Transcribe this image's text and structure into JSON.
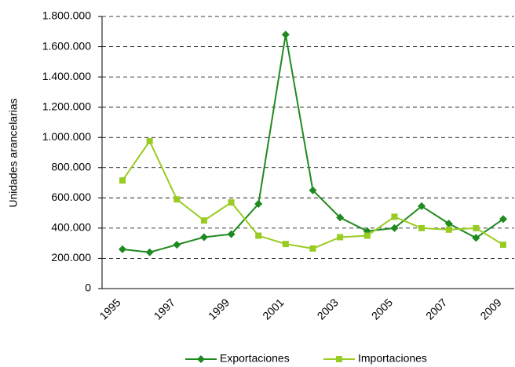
{
  "chart_data": {
    "type": "line",
    "ylabel": "Unidades arancelarias",
    "categories": [
      "1995",
      null,
      "1997",
      null,
      "1999",
      null,
      "2001",
      null,
      "2003",
      null,
      "2005",
      null,
      "2007",
      null,
      "2009"
    ],
    "series": [
      {
        "name": "Exportaciones",
        "color": "#1f8a1f",
        "marker": "diamond",
        "values": [
          260000,
          240000,
          290000,
          340000,
          360000,
          560000,
          1680000,
          650000,
          470000,
          380000,
          400000,
          545000,
          430000,
          335000,
          460000
        ]
      },
      {
        "name": "Importaciones",
        "color": "#99cc22",
        "marker": "square",
        "values": [
          715000,
          975000,
          590000,
          450000,
          570000,
          350000,
          295000,
          265000,
          340000,
          350000,
          475000,
          400000,
          390000,
          400000,
          290000
        ]
      }
    ],
    "ylim": [
      0,
      1800000
    ],
    "yticks": [
      0,
      {
        "value": 200000,
        "label": "200.000"
      },
      {
        "value": 400000,
        "label": "400.000"
      },
      {
        "value": 600000,
        "label": "600.000"
      },
      {
        "value": 800000,
        "label": "800.000"
      },
      {
        "value": 1000000,
        "label": "1.000.000"
      },
      {
        "value": 1200000,
        "label": "1.200.000"
      },
      {
        "value": 1400000,
        "label": "1.400.000"
      },
      {
        "value": 1600000,
        "label": "1.600.000"
      },
      {
        "value": 1800000,
        "label": "1.800.000"
      }
    ],
    "grid": true
  }
}
